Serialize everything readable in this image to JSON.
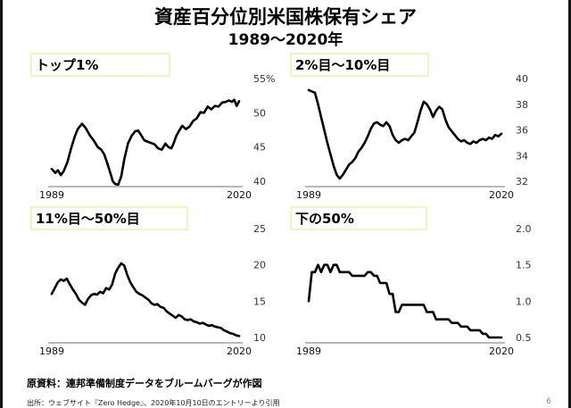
{
  "title": "資産百分位別米国株保有シェア",
  "subtitle": "1989〜2020年",
  "source_note": "原資料：連邦準備制度データをブルームバーグが作図",
  "citation": "出所：ウェブサイト『Zero Hedge』、2020年10月10日のエントリーより引用",
  "page_number": "6",
  "colors": {
    "line": "#000000",
    "label_box_border": "#e8e8a0"
  },
  "chart_data": [
    {
      "type": "line",
      "title": "トップ1%",
      "xlim": [
        1989,
        2020
      ],
      "ylim": [
        40,
        55
      ],
      "yticks": [
        "40",
        "45",
        "50",
        "55%"
      ],
      "xticks": [
        "1989",
        "2020"
      ],
      "x": [
        1989.0,
        1989.6,
        1990.0,
        1990.5,
        1991.0,
        1991.6,
        1992.2,
        1992.8,
        1993.3,
        1994.0,
        1994.6,
        1995.3,
        1996.0,
        1996.6,
        1997.2,
        1997.7,
        1998.2,
        1998.7,
        1999.1,
        1999.5,
        2000.0,
        2000.5,
        2001.0,
        2001.6,
        2002.2,
        2002.8,
        2003.3,
        2003.8,
        2004.3,
        2004.8,
        2005.4,
        2006.0,
        2006.6,
        2007.2,
        2007.8,
        2008.3,
        2008.8,
        2009.2,
        2009.6,
        2010.1,
        2010.6,
        2011.2,
        2011.8,
        2012.4,
        2013.0,
        2013.6,
        2014.2,
        2014.8,
        2015.4,
        2016.0,
        2016.6,
        2017.2,
        2017.8,
        2018.3,
        2018.8,
        2019.2,
        2019.6,
        2020.0
      ],
      "values": [
        41.8,
        41.2,
        41.6,
        40.9,
        41.5,
        42.8,
        44.8,
        46.5,
        47.6,
        48.4,
        47.8,
        46.7,
        45.9,
        45.0,
        44.6,
        43.9,
        42.6,
        41.2,
        40.0,
        39.6,
        39.5,
        40.7,
        43.2,
        45.5,
        46.6,
        47.3,
        47.4,
        46.7,
        46.0,
        45.8,
        45.6,
        45.4,
        44.8,
        44.6,
        45.5,
        45.0,
        44.8,
        45.6,
        46.6,
        47.4,
        48.1,
        47.6,
        48.0,
        48.8,
        49.2,
        50.1,
        50.0,
        50.9,
        50.5,
        51.0,
        50.9,
        51.5,
        51.6,
        51.8,
        51.6,
        51.9,
        51.0,
        51.7
      ]
    },
    {
      "type": "line",
      "title": "2%目〜10%目",
      "xlim": [
        1989,
        2020
      ],
      "ylim": [
        32,
        40
      ],
      "yticks": [
        "32",
        "34",
        "36",
        "38",
        "40"
      ],
      "xticks": [
        "1989",
        "2020"
      ],
      "x": [
        1989.0,
        1989.5,
        1990.0,
        1990.5,
        1991.0,
        1991.5,
        1992.0,
        1992.5,
        1993.0,
        1993.5,
        1994.0,
        1994.5,
        1995.0,
        1995.5,
        1996.0,
        1996.5,
        1997.0,
        1997.5,
        1998.0,
        1998.5,
        1999.0,
        1999.5,
        2000.0,
        2000.5,
        2001.0,
        2001.5,
        2002.0,
        2002.5,
        2003.0,
        2003.5,
        2004.0,
        2004.5,
        2005.0,
        2005.5,
        2006.0,
        2006.5,
        2007.0,
        2007.5,
        2008.0,
        2008.5,
        2009.0,
        2009.5,
        2010.0,
        2010.5,
        2011.0,
        2011.5,
        2012.0,
        2012.5,
        2013.0,
        2013.5,
        2014.0,
        2014.5,
        2015.0,
        2015.5,
        2016.0,
        2016.5,
        2017.0,
        2017.5,
        2018.0,
        2018.5,
        2019.0,
        2019.5,
        2020.0
      ],
      "values": [
        39.1,
        39.0,
        38.9,
        38.0,
        37.0,
        36.0,
        35.0,
        34.1,
        33.2,
        32.5,
        32.2,
        32.5,
        32.9,
        33.3,
        33.5,
        33.8,
        34.3,
        34.6,
        35.0,
        35.5,
        36.1,
        36.5,
        36.6,
        36.4,
        36.3,
        36.6,
        36.3,
        35.6,
        35.2,
        35.0,
        35.2,
        35.3,
        35.2,
        35.5,
        35.8,
        36.6,
        37.5,
        38.2,
        38.0,
        37.6,
        37.0,
        37.5,
        37.8,
        37.6,
        36.8,
        36.2,
        35.9,
        35.6,
        35.3,
        35.1,
        35.2,
        35.0,
        34.9,
        35.1,
        35.0,
        35.2,
        35.3,
        35.2,
        35.4,
        35.3,
        35.6,
        35.5,
        35.7
      ]
    },
    {
      "type": "line",
      "title": "11%目〜50%目",
      "xlim": [
        1989,
        2020
      ],
      "ylim": [
        10,
        25
      ],
      "yticks": [
        "10",
        "15",
        "20",
        "25"
      ],
      "xticks": [
        "1989",
        "2020"
      ],
      "x": [
        1989.0,
        1989.5,
        1990.0,
        1990.5,
        1991.0,
        1991.5,
        1992.0,
        1992.5,
        1993.0,
        1993.5,
        1994.0,
        1994.5,
        1995.0,
        1995.5,
        1996.0,
        1996.5,
        1997.0,
        1997.5,
        1998.0,
        1998.5,
        1999.0,
        1999.5,
        2000.0,
        2000.5,
        2001.0,
        2001.5,
        2002.0,
        2002.5,
        2003.0,
        2003.5,
        2004.0,
        2004.5,
        2005.0,
        2005.5,
        2006.0,
        2006.5,
        2007.0,
        2007.5,
        2008.0,
        2008.5,
        2009.0,
        2009.5,
        2010.0,
        2010.5,
        2011.0,
        2011.5,
        2012.0,
        2012.5,
        2013.0,
        2013.5,
        2014.0,
        2014.5,
        2015.0,
        2015.5,
        2016.0,
        2016.5,
        2017.0,
        2017.5,
        2018.0,
        2018.5,
        2019.0,
        2019.5,
        2020.0
      ],
      "values": [
        16.0,
        16.8,
        17.6,
        18.0,
        17.8,
        18.1,
        17.3,
        16.6,
        16.0,
        15.2,
        14.8,
        14.5,
        15.3,
        15.8,
        16.0,
        15.9,
        16.3,
        16.1,
        16.8,
        16.6,
        17.3,
        18.8,
        19.6,
        20.2,
        19.9,
        18.6,
        17.6,
        16.9,
        16.3,
        16.0,
        15.8,
        15.5,
        15.2,
        14.7,
        14.5,
        14.6,
        14.2,
        14.1,
        13.6,
        13.3,
        13.0,
        12.7,
        13.1,
        12.9,
        12.5,
        12.4,
        12.5,
        12.2,
        12.1,
        11.9,
        12.0,
        11.8,
        11.6,
        11.7,
        11.5,
        11.4,
        11.3,
        11.0,
        10.8,
        10.6,
        10.5,
        10.3,
        10.2
      ]
    },
    {
      "type": "line",
      "title": "下の50%",
      "xlim": [
        1989,
        2020
      ],
      "ylim": [
        0.5,
        2.0
      ],
      "yticks": [
        "0.5",
        "1.0",
        "1.5",
        "2.0"
      ],
      "xticks": [
        "1989",
        "2020"
      ],
      "x": [
        1989.0,
        1989.5,
        1990.0,
        1990.5,
        1991.0,
        1991.5,
        1992.0,
        1992.5,
        1993.0,
        1993.5,
        1994.0,
        1994.5,
        1995.0,
        1995.5,
        1996.0,
        1996.5,
        1997.0,
        1997.5,
        1998.0,
        1998.5,
        1999.0,
        1999.5,
        2000.0,
        2000.5,
        2001.0,
        2001.5,
        2002.0,
        2002.5,
        2003.0,
        2003.5,
        2004.0,
        2004.5,
        2005.0,
        2005.5,
        2006.0,
        2006.5,
        2007.0,
        2007.5,
        2008.0,
        2008.5,
        2009.0,
        2009.5,
        2010.0,
        2010.5,
        2011.0,
        2011.5,
        2012.0,
        2012.5,
        2013.0,
        2013.5,
        2014.0,
        2014.5,
        2015.0,
        2015.5,
        2016.0,
        2016.5,
        2017.0,
        2017.5,
        2018.0,
        2018.5,
        2019.0,
        2019.5,
        2020.0
      ],
      "values": [
        1.0,
        1.4,
        1.4,
        1.5,
        1.4,
        1.5,
        1.5,
        1.4,
        1.5,
        1.5,
        1.4,
        1.4,
        1.4,
        1.4,
        1.35,
        1.35,
        1.35,
        1.35,
        1.35,
        1.4,
        1.4,
        1.35,
        1.35,
        1.25,
        1.25,
        1.25,
        1.1,
        1.1,
        0.85,
        0.85,
        0.95,
        0.95,
        0.95,
        0.95,
        0.95,
        0.95,
        0.95,
        0.95,
        0.85,
        0.85,
        0.85,
        0.75,
        0.75,
        0.75,
        0.75,
        0.75,
        0.7,
        0.7,
        0.7,
        0.65,
        0.65,
        0.65,
        0.6,
        0.6,
        0.6,
        0.6,
        0.55,
        0.55,
        0.5,
        0.5,
        0.5,
        0.5,
        0.5
      ]
    }
  ]
}
